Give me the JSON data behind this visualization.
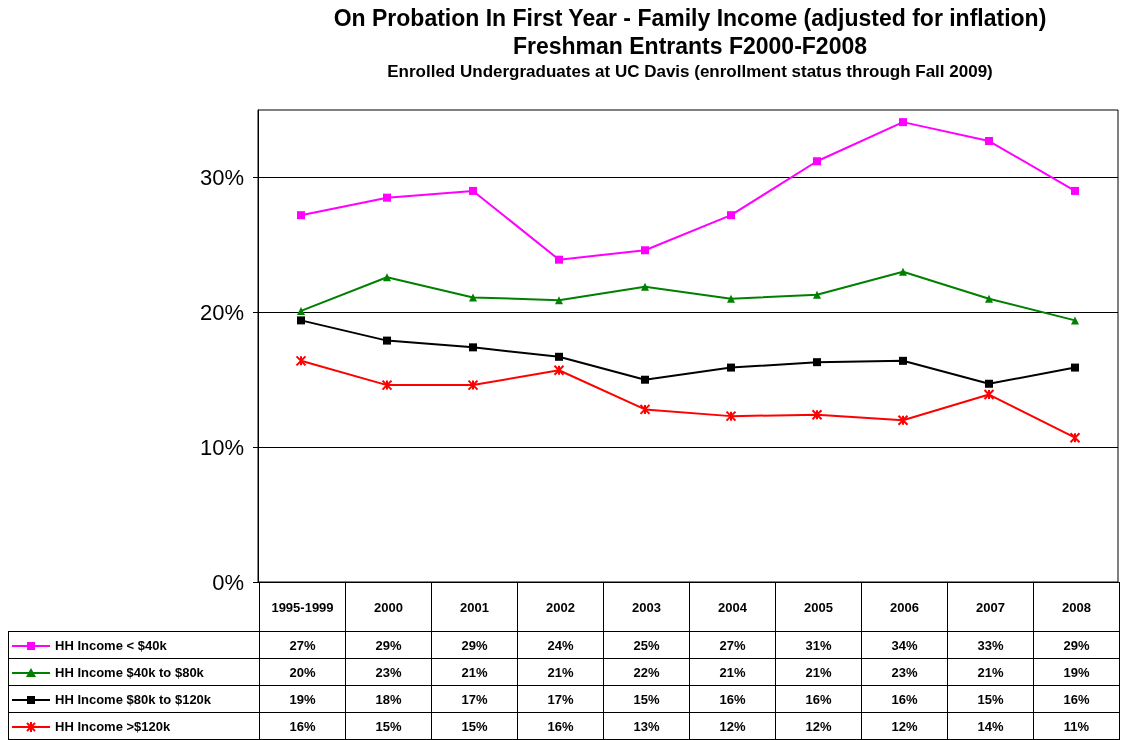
{
  "chart_data": {
    "type": "line",
    "title": "On Probation In First Year - Family Income (adjusted for inflation)\nFreshman Entrants F2000-F2008",
    "subtitle": "Enrolled Undergraduates at UC Davis (enrollment status through Fall 2009)",
    "categories": [
      "1995-1999",
      "2000",
      "2001",
      "2002",
      "2003",
      "2004",
      "2005",
      "2006",
      "2007",
      "2008"
    ],
    "series": [
      {
        "name": "HH Income < $40k",
        "color": "#ff00ff",
        "marker": "square",
        "values": [
          27.2,
          28.5,
          29.0,
          23.9,
          24.6,
          27.2,
          31.2,
          34.1,
          32.7,
          29.0
        ],
        "value_labels": [
          "27%",
          "29%",
          "29%",
          "24%",
          "25%",
          "27%",
          "31%",
          "34%",
          "33%",
          "29%"
        ]
      },
      {
        "name": "HH Income $40k  to $80k",
        "color": "#008000",
        "marker": "triangle",
        "values": [
          20.1,
          22.6,
          21.1,
          20.9,
          21.9,
          21.0,
          21.3,
          23.0,
          21.0,
          19.4
        ],
        "value_labels": [
          "20%",
          "23%",
          "21%",
          "21%",
          "22%",
          "21%",
          "21%",
          "23%",
          "21%",
          "19%"
        ]
      },
      {
        "name": "HH Income $80k  to $120k",
        "color": "#000000",
        "marker": "square",
        "values": [
          19.4,
          17.9,
          17.4,
          16.7,
          15.0,
          15.9,
          16.3,
          16.4,
          14.7,
          15.9
        ],
        "value_labels": [
          "19%",
          "18%",
          "17%",
          "17%",
          "15%",
          "16%",
          "16%",
          "16%",
          "15%",
          "16%"
        ]
      },
      {
        "name": "HH Income >$120k",
        "color": "#ff0000",
        "marker": "cross",
        "values": [
          16.4,
          14.6,
          14.6,
          15.7,
          12.8,
          12.3,
          12.4,
          12.0,
          13.9,
          10.7
        ],
        "value_labels": [
          "16%",
          "15%",
          "15%",
          "16%",
          "13%",
          "12%",
          "12%",
          "12%",
          "14%",
          "11%"
        ]
      }
    ],
    "ylim": [
      0,
      35
    ],
    "yticks": [
      {
        "value": 0,
        "label": "0%"
      },
      {
        "value": 10,
        "label": "10%"
      },
      {
        "value": 20,
        "label": "20%"
      },
      {
        "value": 30,
        "label": "30%"
      }
    ],
    "grid": "y",
    "legend": "bottom",
    "line_style": "solid"
  }
}
